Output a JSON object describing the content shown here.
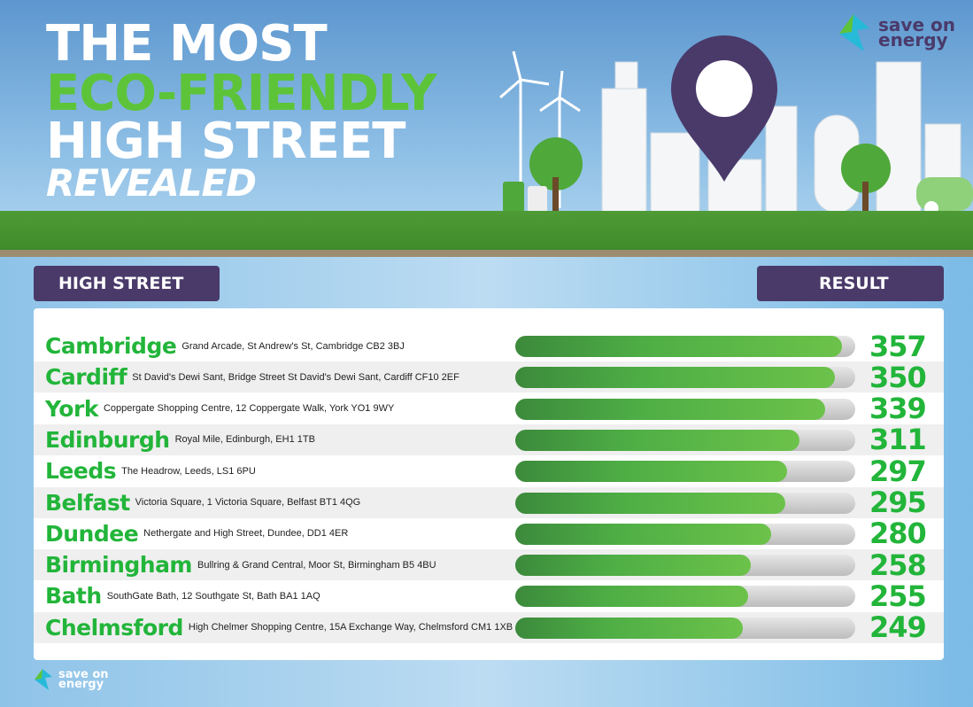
{
  "title": {
    "line1": "THE MOST",
    "line2": "ECO-FRIENDLY",
    "line3": "HIGH STREET",
    "line4": "REVEALED"
  },
  "logo": {
    "line1": "save on",
    "line2": "energy"
  },
  "headers": {
    "left": "HIGH STREET",
    "right": "RESULT"
  },
  "colors": {
    "accent": "#22b53a",
    "header_bg": "#4a3a6a",
    "bar": "#4eae45"
  },
  "chart_data": {
    "type": "bar",
    "orientation": "horizontal",
    "xlim": [
      0,
      372
    ],
    "categories": [
      "Cambridge",
      "Cardiff",
      "York",
      "Edinburgh",
      "Leeds",
      "Belfast",
      "Dundee",
      "Birmingham",
      "Bath",
      "Chelmsford"
    ],
    "addresses": [
      "Grand Arcade, St Andrew's St, Cambridge CB2 3BJ",
      "St David's Dewi Sant, Bridge Street St David's Dewi Sant, Cardiff CF10 2EF",
      "Coppergate Shopping Centre, 12 Coppergate Walk, York YO1 9WY",
      "Royal Mile, Edinburgh, EH1 1TB",
      "The Headrow, Leeds, LS1 6PU",
      "Victoria Square, 1 Victoria Square, Belfast BT1 4QG",
      "Nethergate and High Street, Dundee, DD1 4ER",
      "Bullring & Grand Central, Moor St, Birmingham B5 4BU",
      "SouthGate Bath, 12 Southgate St, Bath BA1 1AQ",
      "High Chelmer Shopping Centre, 15A Exchange Way, Chelmsford CM1 1XB"
    ],
    "values": [
      357,
      350,
      339,
      311,
      297,
      295,
      280,
      258,
      255,
      249
    ]
  }
}
